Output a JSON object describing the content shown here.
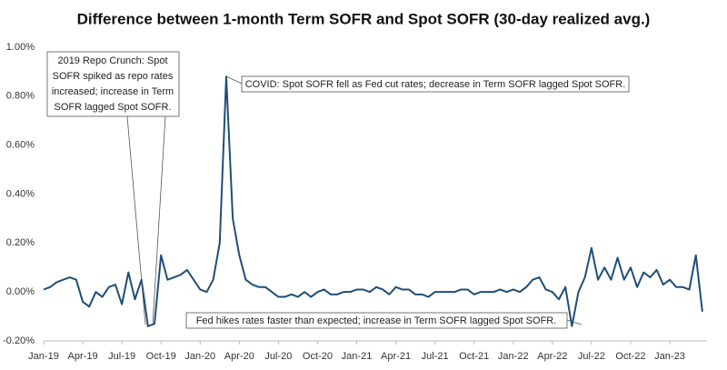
{
  "chart_data": {
    "type": "line",
    "title": "Difference between 1-month Term SOFR and Spot SOFR (30-day realized avg.)",
    "categories": [
      "Jan-19",
      null,
      null,
      null,
      null,
      null,
      "Apr-19",
      null,
      null,
      null,
      null,
      null,
      "Jul-19",
      null,
      null,
      null,
      null,
      null,
      "Oct-19",
      null,
      null,
      null,
      null,
      null,
      "Jan-20",
      null,
      null,
      null,
      null,
      null,
      "Apr-20",
      null,
      null,
      null,
      null,
      null,
      "Jul-20",
      null,
      null,
      null,
      null,
      null,
      "Oct-20",
      null,
      null,
      null,
      null,
      null,
      "Jan-21",
      null,
      null,
      null,
      null,
      null,
      "Apr-21",
      null,
      null,
      null,
      null,
      null,
      "Jul-21",
      null,
      null,
      null,
      null,
      null,
      "Oct-21",
      null,
      null,
      null,
      null,
      null,
      "Jan-22",
      null,
      null,
      null,
      null,
      null,
      "Apr-22",
      null,
      null,
      null,
      null,
      null,
      "Jul-22",
      null,
      null,
      null,
      null,
      null,
      "Oct-22",
      null,
      null,
      null,
      null,
      null,
      "Jan-23",
      null,
      null,
      null,
      null,
      null
    ],
    "series": [
      {
        "color": "#1f4e79",
        "values": [
          0.01,
          0.02,
          0.04,
          0.05,
          0.06,
          0.05,
          -0.04,
          -0.06,
          0.0,
          -0.02,
          0.02,
          0.03,
          -0.05,
          0.08,
          -0.03,
          0.05,
          -0.14,
          -0.13,
          0.15,
          0.05,
          0.06,
          0.07,
          0.09,
          0.05,
          0.01,
          0.0,
          0.05,
          0.2,
          0.88,
          0.3,
          0.15,
          0.05,
          0.03,
          0.02,
          0.02,
          0.0,
          -0.02,
          -0.02,
          -0.01,
          -0.02,
          0.0,
          -0.02,
          0.0,
          0.01,
          -0.01,
          -0.01,
          0.0,
          0.0,
          0.01,
          0.01,
          0.0,
          0.02,
          0.01,
          -0.01,
          0.02,
          0.01,
          0.01,
          -0.01,
          -0.01,
          -0.02,
          0.0,
          0.0,
          0.0,
          0.0,
          0.01,
          0.01,
          -0.01,
          0.0,
          0.0,
          0.0,
          0.01,
          0.0,
          0.01,
          0.0,
          0.02,
          0.05,
          0.06,
          0.01,
          0.0,
          -0.03,
          0.02,
          -0.14,
          0.0,
          0.06,
          0.18,
          0.05,
          0.1,
          0.05,
          0.14,
          0.05,
          0.1,
          0.02,
          0.08,
          0.06,
          0.09,
          0.03,
          0.05,
          0.02,
          0.02,
          0.01,
          0.15,
          -0.08
        ]
      }
    ],
    "ylim": [
      -0.2,
      1.0
    ],
    "yticks": [
      {
        "value": -0.2,
        "label": "-0.20%"
      },
      {
        "value": 0,
        "label": "0.00%"
      },
      {
        "value": 0.2,
        "label": "0.20%"
      },
      {
        "value": 0.4,
        "label": "0.40%"
      },
      {
        "value": 0.6,
        "label": "0.60%"
      },
      {
        "value": 0.8,
        "label": "0.80%"
      },
      {
        "value": 1.0,
        "label": "1.00%"
      }
    ],
    "annotations": [
      {
        "lines": [
          "2019 Repo Crunch: Spot",
          "SOFR spiked as repo rates",
          "increased; increase in Term",
          "SOFR lagged Spot SOFR."
        ]
      },
      {
        "lines": [
          "COVID: Spot SOFR fell as Fed cut rates; decrease in Term SOFR lagged Spot SOFR."
        ]
      },
      {
        "lines": [
          "Fed hikes rates faster than expected; increase in Term SOFR lagged Spot SOFR."
        ]
      }
    ]
  }
}
